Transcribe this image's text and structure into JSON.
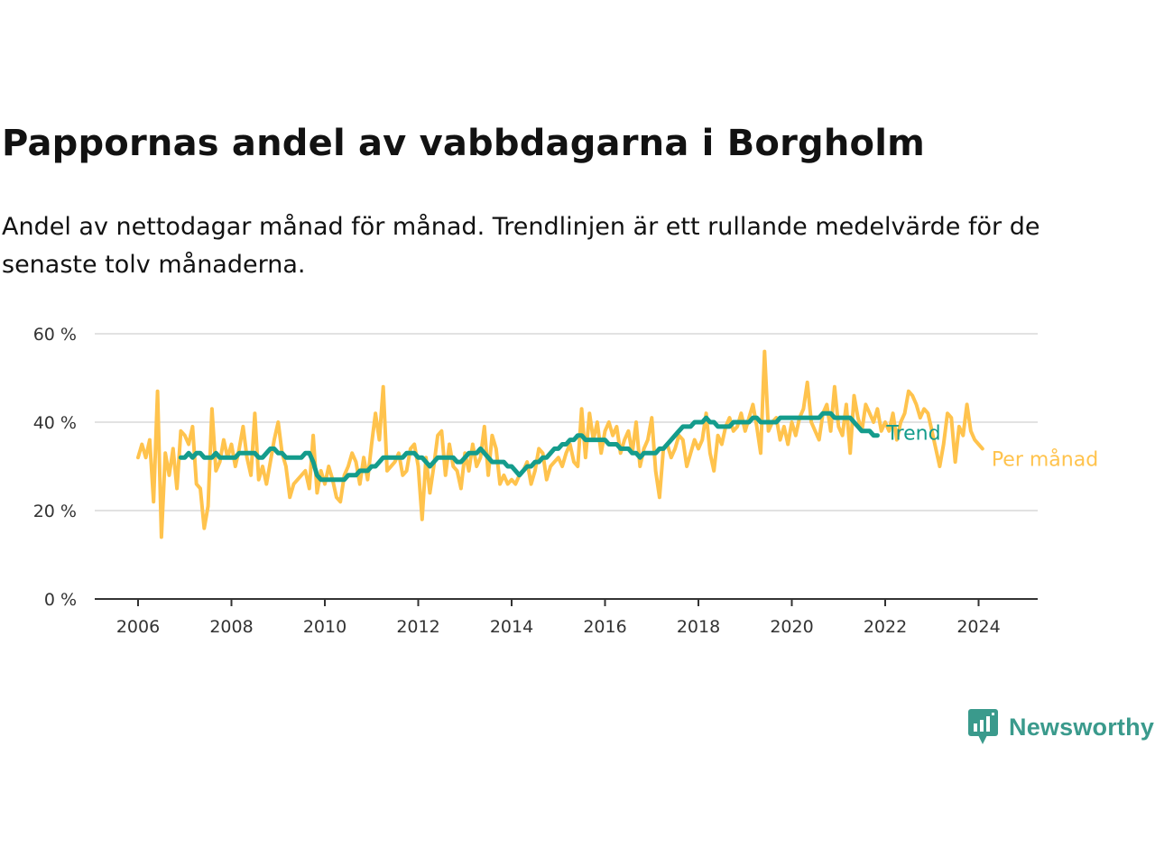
{
  "title": "Pappornas andel av vabbdagarna i Borgholm",
  "subtitle": "Andel av nettodagar månad för månad. Trendlinjen är ett rullande medelvärde för de senaste tolv månaderna.",
  "brand": {
    "name": "Newsworthy",
    "icon": "newsworthy-logo-icon",
    "color": "#3a9a8c"
  },
  "chart_data": {
    "type": "line",
    "title": "Pappornas andel av vabbdagarna i Borgholm",
    "subtitle": "Andel av nettodagar månad för månad. Trendlinjen är ett rullande medelvärde för de senaste tolv månaderna.",
    "xlabel": "",
    "ylabel": "",
    "xlim": [
      2005.5,
      2025.2
    ],
    "ylim": [
      0,
      60
    ],
    "x_ticks": [
      "2006",
      "2008",
      "2010",
      "2012",
      "2014",
      "2016",
      "2018",
      "2020",
      "2022",
      "2024"
    ],
    "y_ticks": [
      "0 %",
      "20 %",
      "40 %",
      "60 %"
    ],
    "grid": true,
    "legend": "inline labels at line ends (right)",
    "series": [
      {
        "name": "Per månad",
        "color": "#ffc34d",
        "x_start": "2006-01",
        "frequency": "monthly",
        "values": [
          32,
          35,
          32,
          36,
          22,
          47,
          14,
          33,
          28,
          34,
          25,
          38,
          37,
          35,
          39,
          26,
          25,
          16,
          21,
          43,
          29,
          31,
          36,
          32,
          35,
          30,
          34,
          39,
          32,
          28,
          42,
          27,
          30,
          26,
          31,
          36,
          40,
          33,
          30,
          23,
          26,
          27,
          28,
          29,
          25,
          37,
          24,
          29,
          26,
          30,
          27,
          23,
          22,
          28,
          30,
          33,
          31,
          26,
          32,
          27,
          35,
          42,
          36,
          48,
          29,
          30,
          31,
          33,
          28,
          29,
          34,
          35,
          30,
          18,
          32,
          24,
          30,
          37,
          38,
          28,
          35,
          30,
          29,
          25,
          33,
          29,
          35,
          30,
          32,
          39,
          28,
          37,
          34,
          26,
          28,
          26,
          27,
          26,
          28,
          29,
          31,
          26,
          29,
          34,
          33,
          27,
          30,
          31,
          32,
          30,
          33,
          35,
          31,
          30,
          43,
          32,
          42,
          36,
          40,
          33,
          38,
          40,
          37,
          39,
          33,
          36,
          38,
          33,
          40,
          30,
          34,
          36,
          41,
          29,
          23,
          34,
          35,
          32,
          34,
          37,
          36,
          30,
          33,
          36,
          34,
          36,
          42,
          33,
          29,
          37,
          35,
          39,
          41,
          38,
          39,
          42,
          38,
          41,
          44,
          39,
          33,
          56,
          38,
          40,
          41,
          36,
          39,
          35,
          40,
          37,
          41,
          43,
          49,
          40,
          38,
          36,
          42,
          44,
          38,
          48,
          39,
          37,
          44,
          33,
          46,
          41,
          38,
          44,
          42,
          40,
          43,
          38,
          40,
          38,
          42,
          36,
          40,
          42,
          47,
          46,
          44,
          41,
          43,
          42,
          38,
          34,
          30,
          35,
          42,
          41,
          31,
          39,
          37,
          44,
          38,
          36,
          35,
          34
        ]
      },
      {
        "name": "Trend",
        "color": "#149c8c",
        "x_start": "2006-12",
        "frequency": "monthly",
        "values": [
          32,
          32,
          33,
          32,
          33,
          33,
          32,
          32,
          32,
          33,
          32,
          32,
          32,
          32,
          32,
          33,
          33,
          33,
          33,
          33,
          32,
          32,
          33,
          34,
          34,
          33,
          33,
          32,
          32,
          32,
          32,
          32,
          33,
          33,
          31,
          28,
          27,
          27,
          27,
          27,
          27,
          27,
          27,
          28,
          28,
          28,
          29,
          29,
          29,
          30,
          30,
          31,
          32,
          32,
          32,
          32,
          32,
          32,
          33,
          33,
          33,
          32,
          32,
          31,
          30,
          31,
          32,
          32,
          32,
          32,
          32,
          31,
          31,
          32,
          33,
          33,
          33,
          34,
          33,
          32,
          31,
          31,
          31,
          31,
          30,
          30,
          29,
          28,
          29,
          30,
          30,
          31,
          31,
          32,
          32,
          33,
          34,
          34,
          35,
          35,
          36,
          36,
          37,
          37,
          36,
          36,
          36,
          36,
          36,
          36,
          35,
          35,
          35,
          34,
          34,
          34,
          33,
          33,
          32,
          33,
          33,
          33,
          33,
          34,
          34,
          35,
          36,
          37,
          38,
          39,
          39,
          39,
          40,
          40,
          40,
          41,
          40,
          40,
          39,
          39,
          39,
          39,
          40,
          40,
          40,
          40,
          40,
          41,
          41,
          40,
          40,
          40,
          40,
          40,
          41,
          41,
          41,
          41,
          41,
          41,
          41,
          41,
          41,
          41,
          41,
          42,
          42,
          42,
          41,
          41,
          41,
          41,
          41,
          40,
          39,
          38,
          38,
          38,
          37,
          37
        ]
      }
    ]
  }
}
